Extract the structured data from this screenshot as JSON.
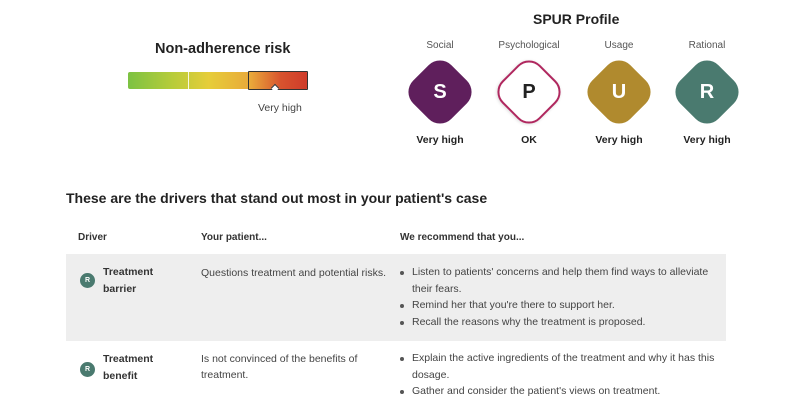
{
  "risk": {
    "title": "Non-adherence risk",
    "level_label": "Very high",
    "level_fraction": 1.0
  },
  "spur": {
    "title": "SPUR Profile",
    "items": [
      {
        "category": "Social",
        "letter": "S",
        "level": "Very high",
        "color": "#5f1f5c",
        "style": "filled"
      },
      {
        "category": "Psychological",
        "letter": "P",
        "level": "OK",
        "color": "#b0285f",
        "style": "outline"
      },
      {
        "category": "Usage",
        "letter": "U",
        "level": "Very high",
        "color": "#b08a2e",
        "style": "filled"
      },
      {
        "category": "Rational",
        "letter": "R",
        "level": "Very high",
        "color": "#4a7a6f",
        "style": "filled"
      }
    ]
  },
  "drivers": {
    "title": "These are the drivers that stand out most in your patient's case",
    "headers": {
      "driver": "Driver",
      "patient": "Your patient...",
      "recommend": "We recommend that you..."
    },
    "rows": [
      {
        "icon_letter": "R",
        "driver_line1": "Treatment",
        "driver_line2": "barrier",
        "patient": "Questions treatment and potential risks.",
        "recs": [
          "Listen to patients' concerns and help them find ways to alleviate their fears.",
          "Remind her that you're there to support her.",
          "Recall the reasons why the treatment is proposed."
        ]
      },
      {
        "icon_letter": "R",
        "driver_line1": "Treatment",
        "driver_line2": "benefit",
        "patient": "Is not convinced of the benefits of treatment.",
        "recs": [
          "Explain the active ingredients of the treatment and why it has this dosage.",
          "Gather and consider the patient's views on treatment."
        ]
      }
    ]
  }
}
